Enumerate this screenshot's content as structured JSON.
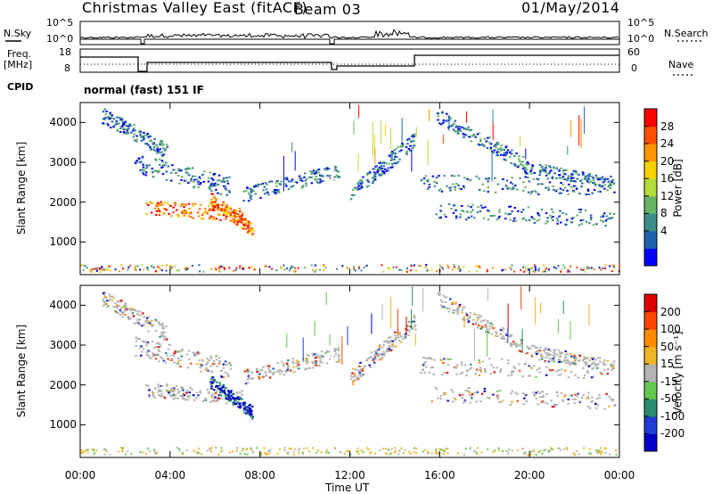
{
  "header": {
    "station": "Christmas Valley East (fitACF)",
    "beam": "Beam 03",
    "date": "01/May/2014"
  },
  "panels": {
    "nsky": {
      "label": "N.Sky",
      "ticks": [
        "10^5",
        "10^0"
      ]
    },
    "nsearch": {
      "label": "N.Search",
      "ticks": [
        "10^5",
        "10^0"
      ]
    },
    "freq": {
      "label_lines": [
        "Freq.",
        "[MHz]"
      ],
      "ticks": [
        "18",
        "8"
      ]
    },
    "nave": {
      "label": "Nave",
      "ticks": [
        "60",
        "0"
      ]
    },
    "cpid": {
      "label": "CPID",
      "value": "normal (fast) 151 IF"
    }
  },
  "chart_data": [
    {
      "type": "heatmap",
      "name": "power",
      "ylabel": "Slant Range [km]",
      "yticks": [
        "4000",
        "3000",
        "2000",
        "1000"
      ],
      "ylim": [
        180,
        4500
      ],
      "colorbar_label": "Power [dB]",
      "colorbar_ticks": [
        "28",
        "24",
        "20",
        "16",
        "12",
        "8",
        "4"
      ],
      "colors": [
        "#0000ff",
        "#1e5fb0",
        "#3c8c8c",
        "#64b464",
        "#b4dc3c",
        "#f5d200",
        "#ff9600",
        "#ff5000",
        "#ff0000"
      ]
    },
    {
      "type": "heatmap",
      "name": "velocity",
      "ylabel": "Slant Range [km]",
      "yticks": [
        "4000",
        "3000",
        "2000",
        "1000"
      ],
      "ylim": [
        180,
        4500
      ],
      "colorbar_label": "Velocity [m s⁻¹]",
      "colorbar_ticks": [
        "200",
        "100",
        "50",
        "15",
        "-15",
        "-50",
        "-100",
        "-200"
      ],
      "colors": [
        "#0000c8",
        "#1e3cd2",
        "#288c6e",
        "#64c850",
        "#b4b4b4",
        "#f0b428",
        "#ff8c00",
        "#ff4600",
        "#dc0000"
      ]
    }
  ],
  "xaxis": {
    "label": "Time UT",
    "ticks": [
      "00:00",
      "04:00",
      "08:00",
      "12:00",
      "16:00",
      "20:00",
      "00:00"
    ]
  }
}
